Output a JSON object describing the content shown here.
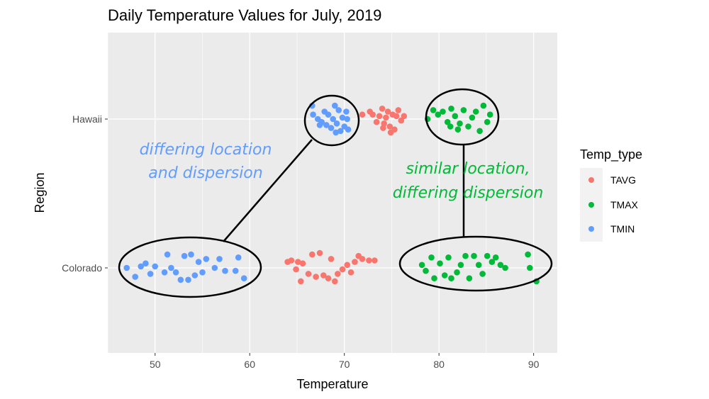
{
  "chart_data": {
    "type": "scatter",
    "title": "Daily Temperature Values for July, 2019",
    "xlabel": "Temperature",
    "ylabel": "Region",
    "xlim": [
      45,
      92.5
    ],
    "x_ticks": [
      50,
      60,
      70,
      80,
      90
    ],
    "categories": [
      "Colorado",
      "Hawaii"
    ],
    "grid": true,
    "legend": {
      "title": "Temp_type",
      "placement": "right"
    },
    "series": [
      {
        "name": "TAVG",
        "color": "#F8766D",
        "points": [
          {
            "x": 64.0,
            "y": "Colorado",
            "j": 0.04
          },
          {
            "x": 64.4,
            "y": "Colorado",
            "j": 0.05
          },
          {
            "x": 64.9,
            "y": "Colorado",
            "j": -0.01
          },
          {
            "x": 65.1,
            "y": "Colorado",
            "j": 0.04
          },
          {
            "x": 65.4,
            "y": "Colorado",
            "j": -0.09
          },
          {
            "x": 65.6,
            "y": "Colorado",
            "j": 0.03
          },
          {
            "x": 66.2,
            "y": "Colorado",
            "j": -0.04
          },
          {
            "x": 66.6,
            "y": "Colorado",
            "j": 0.09
          },
          {
            "x": 67.0,
            "y": "Colorado",
            "j": -0.06
          },
          {
            "x": 67.4,
            "y": "Colorado",
            "j": 0.1
          },
          {
            "x": 67.8,
            "y": "Colorado",
            "j": -0.05
          },
          {
            "x": 68.3,
            "y": "Colorado",
            "j": -0.07
          },
          {
            "x": 68.6,
            "y": "Colorado",
            "j": 0.06
          },
          {
            "x": 69.0,
            "y": "Colorado",
            "j": -0.09
          },
          {
            "x": 69.3,
            "y": "Colorado",
            "j": -0.04
          },
          {
            "x": 69.8,
            "y": "Colorado",
            "j": -0.01
          },
          {
            "x": 70.3,
            "y": "Colorado",
            "j": 0.02
          },
          {
            "x": 70.7,
            "y": "Colorado",
            "j": -0.03
          },
          {
            "x": 71.1,
            "y": "Colorado",
            "j": 0.04
          },
          {
            "x": 71.5,
            "y": "Colorado",
            "j": 0.08
          },
          {
            "x": 71.9,
            "y": "Colorado",
            "j": 0.06
          },
          {
            "x": 72.6,
            "y": "Colorado",
            "j": 0.05
          },
          {
            "x": 73.2,
            "y": "Colorado",
            "j": 0.05
          },
          {
            "x": 71.9,
            "y": "Hawaii",
            "j": 0.03
          },
          {
            "x": 72.7,
            "y": "Hawaii",
            "j": 0.05
          },
          {
            "x": 73.0,
            "y": "Hawaii",
            "j": 0.03
          },
          {
            "x": 73.4,
            "y": "Hawaii",
            "j": -0.02
          },
          {
            "x": 73.7,
            "y": "Hawaii",
            "j": 0.02
          },
          {
            "x": 74.0,
            "y": "Hawaii",
            "j": 0.07
          },
          {
            "x": 74.2,
            "y": "Hawaii",
            "j": -0.03
          },
          {
            "x": 74.4,
            "y": "Hawaii",
            "j": 0.01
          },
          {
            "x": 74.6,
            "y": "Hawaii",
            "j": 0.05
          },
          {
            "x": 74.8,
            "y": "Hawaii",
            "j": -0.05
          },
          {
            "x": 75.1,
            "y": "Hawaii",
            "j": 0.03
          },
          {
            "x": 75.3,
            "y": "Hawaii",
            "j": -0.07
          },
          {
            "x": 75.5,
            "y": "Hawaii",
            "j": 0.02
          },
          {
            "x": 75.7,
            "y": "Hawaii",
            "j": 0.06
          },
          {
            "x": 76.0,
            "y": "Hawaii",
            "j": -0.01
          },
          {
            "x": 76.3,
            "y": "Hawaii",
            "j": 0.02
          },
          {
            "x": 74.1,
            "y": "Hawaii",
            "j": -0.06
          },
          {
            "x": 74.9,
            "y": "Hawaii",
            "j": -0.09
          }
        ]
      },
      {
        "name": "TMAX",
        "color": "#00BA38",
        "points": [
          {
            "x": 78.2,
            "y": "Colorado",
            "j": 0.02
          },
          {
            "x": 78.6,
            "y": "Colorado",
            "j": -0.02
          },
          {
            "x": 79.2,
            "y": "Colorado",
            "j": 0.07
          },
          {
            "x": 79.5,
            "y": "Colorado",
            "j": -0.07
          },
          {
            "x": 80.1,
            "y": "Colorado",
            "j": 0.03
          },
          {
            "x": 80.6,
            "y": "Colorado",
            "j": -0.05
          },
          {
            "x": 81.0,
            "y": "Colorado",
            "j": 0.07
          },
          {
            "x": 81.3,
            "y": "Colorado",
            "j": -0.07
          },
          {
            "x": 81.9,
            "y": "Colorado",
            "j": -0.03
          },
          {
            "x": 82.3,
            "y": "Colorado",
            "j": 0.02
          },
          {
            "x": 82.8,
            "y": "Colorado",
            "j": 0.08
          },
          {
            "x": 83.2,
            "y": "Colorado",
            "j": -0.07
          },
          {
            "x": 83.7,
            "y": "Colorado",
            "j": 0.08
          },
          {
            "x": 84.2,
            "y": "Colorado",
            "j": 0.02
          },
          {
            "x": 84.6,
            "y": "Colorado",
            "j": -0.04
          },
          {
            "x": 85.1,
            "y": "Colorado",
            "j": 0.08
          },
          {
            "x": 85.6,
            "y": "Colorado",
            "j": 0.04
          },
          {
            "x": 86.0,
            "y": "Colorado",
            "j": 0.07
          },
          {
            "x": 86.5,
            "y": "Colorado",
            "j": 0.02
          },
          {
            "x": 87.0,
            "y": "Colorado",
            "j": 0.0
          },
          {
            "x": 89.4,
            "y": "Colorado",
            "j": 0.09
          },
          {
            "x": 89.6,
            "y": "Colorado",
            "j": 0.0
          },
          {
            "x": 90.3,
            "y": "Colorado",
            "j": -0.09
          },
          {
            "x": 78.8,
            "y": "Hawaii",
            "j": 0.0
          },
          {
            "x": 79.4,
            "y": "Hawaii",
            "j": 0.06
          },
          {
            "x": 79.9,
            "y": "Hawaii",
            "j": 0.03
          },
          {
            "x": 80.4,
            "y": "Hawaii",
            "j": 0.05
          },
          {
            "x": 80.9,
            "y": "Hawaii",
            "j": -0.02
          },
          {
            "x": 81.3,
            "y": "Hawaii",
            "j": 0.07
          },
          {
            "x": 81.7,
            "y": "Hawaii",
            "j": 0.02
          },
          {
            "x": 82.2,
            "y": "Hawaii",
            "j": -0.03
          },
          {
            "x": 82.6,
            "y": "Hawaii",
            "j": 0.06
          },
          {
            "x": 83.1,
            "y": "Hawaii",
            "j": -0.05
          },
          {
            "x": 83.5,
            "y": "Hawaii",
            "j": 0.01
          },
          {
            "x": 83.9,
            "y": "Hawaii",
            "j": 0.05
          },
          {
            "x": 84.3,
            "y": "Hawaii",
            "j": -0.08
          },
          {
            "x": 84.7,
            "y": "Hawaii",
            "j": 0.09
          },
          {
            "x": 85.1,
            "y": "Hawaii",
            "j": -0.02
          },
          {
            "x": 85.4,
            "y": "Hawaii",
            "j": 0.03
          },
          {
            "x": 82.0,
            "y": "Hawaii",
            "j": -0.07
          },
          {
            "x": 81.2,
            "y": "Hawaii",
            "j": -0.05
          }
        ]
      },
      {
        "name": "TMIN",
        "color": "#619CFF",
        "points": [
          {
            "x": 47.0,
            "y": "Colorado",
            "j": 0.0
          },
          {
            "x": 47.9,
            "y": "Colorado",
            "j": -0.06
          },
          {
            "x": 48.5,
            "y": "Colorado",
            "j": 0.01
          },
          {
            "x": 49.0,
            "y": "Colorado",
            "j": 0.03
          },
          {
            "x": 49.5,
            "y": "Colorado",
            "j": -0.04
          },
          {
            "x": 50.0,
            "y": "Colorado",
            "j": 0.01
          },
          {
            "x": 51.0,
            "y": "Colorado",
            "j": -0.03
          },
          {
            "x": 51.3,
            "y": "Colorado",
            "j": 0.09
          },
          {
            "x": 51.7,
            "y": "Colorado",
            "j": 0.0
          },
          {
            "x": 52.2,
            "y": "Colorado",
            "j": -0.03
          },
          {
            "x": 52.7,
            "y": "Colorado",
            "j": -0.08
          },
          {
            "x": 53.1,
            "y": "Colorado",
            "j": 0.08
          },
          {
            "x": 53.5,
            "y": "Colorado",
            "j": -0.08
          },
          {
            "x": 53.8,
            "y": "Colorado",
            "j": 0.09
          },
          {
            "x": 54.2,
            "y": "Colorado",
            "j": -0.05
          },
          {
            "x": 54.6,
            "y": "Colorado",
            "j": 0.04
          },
          {
            "x": 55.0,
            "y": "Colorado",
            "j": -0.03
          },
          {
            "x": 55.4,
            "y": "Colorado",
            "j": 0.06
          },
          {
            "x": 56.3,
            "y": "Colorado",
            "j": 0.0
          },
          {
            "x": 56.8,
            "y": "Colorado",
            "j": 0.06
          },
          {
            "x": 57.4,
            "y": "Colorado",
            "j": -0.02
          },
          {
            "x": 58.5,
            "y": "Colorado",
            "j": -0.02
          },
          {
            "x": 58.8,
            "y": "Colorado",
            "j": 0.07
          },
          {
            "x": 59.4,
            "y": "Colorado",
            "j": -0.07
          },
          {
            "x": 66.6,
            "y": "Hawaii",
            "j": 0.09
          },
          {
            "x": 66.7,
            "y": "Hawaii",
            "j": 0.03
          },
          {
            "x": 67.2,
            "y": "Hawaii",
            "j": 0.0
          },
          {
            "x": 67.6,
            "y": "Hawaii",
            "j": -0.02
          },
          {
            "x": 67.9,
            "y": "Hawaii",
            "j": 0.05
          },
          {
            "x": 68.1,
            "y": "Hawaii",
            "j": -0.04
          },
          {
            "x": 68.3,
            "y": "Hawaii",
            "j": 0.03
          },
          {
            "x": 68.6,
            "y": "Hawaii",
            "j": -0.06
          },
          {
            "x": 68.8,
            "y": "Hawaii",
            "j": 0.0
          },
          {
            "x": 69.0,
            "y": "Hawaii",
            "j": 0.09
          },
          {
            "x": 69.2,
            "y": "Hawaii",
            "j": -0.03
          },
          {
            "x": 69.4,
            "y": "Hawaii",
            "j": 0.06
          },
          {
            "x": 69.6,
            "y": "Hawaii",
            "j": -0.08
          },
          {
            "x": 69.8,
            "y": "Hawaii",
            "j": 0.01
          },
          {
            "x": 70.0,
            "y": "Hawaii",
            "j": -0.05
          },
          {
            "x": 70.2,
            "y": "Hawaii",
            "j": 0.05
          },
          {
            "x": 70.4,
            "y": "Hawaii",
            "j": -0.07
          },
          {
            "x": 69.1,
            "y": "Hawaii",
            "j": -0.09
          },
          {
            "x": 67.4,
            "y": "Hawaii",
            "j": -0.04
          },
          {
            "x": 70.3,
            "y": "Hawaii",
            "j": 0.0
          }
        ]
      }
    ],
    "annotations": [
      {
        "lines": [
          "differing location",
          "and dispersion"
        ],
        "color": "#619CFF"
      },
      {
        "lines": [
          "similar  location,",
          "differing dispersion"
        ],
        "color": "#00BA38"
      }
    ]
  }
}
